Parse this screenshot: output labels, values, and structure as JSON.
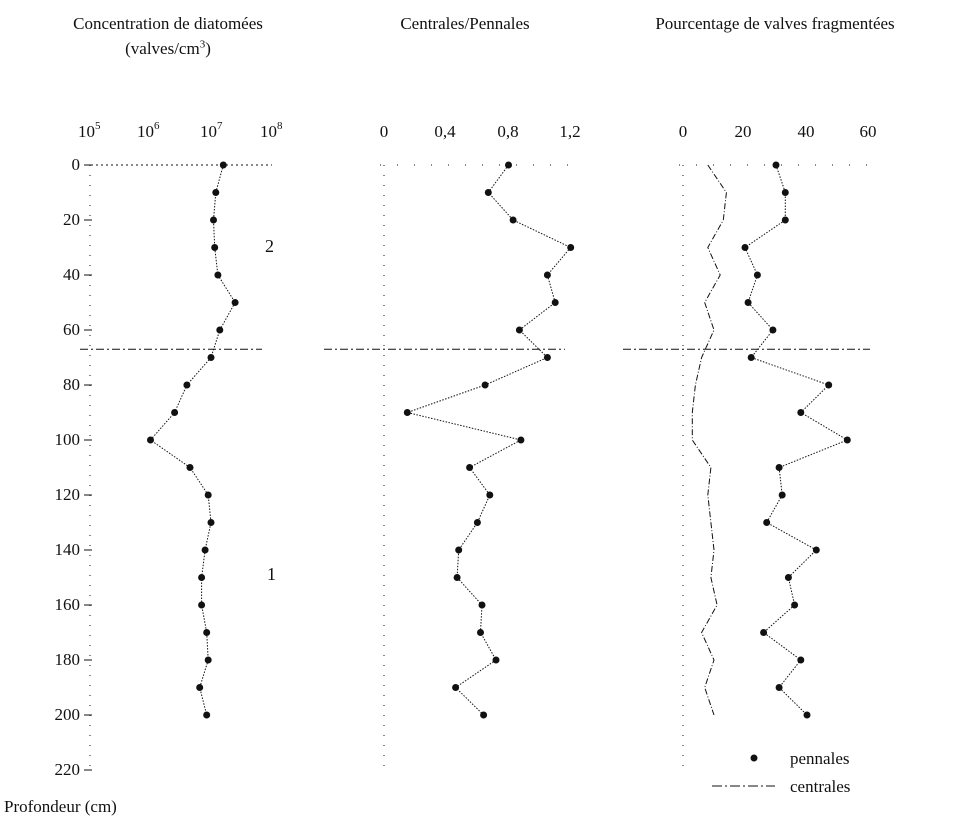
{
  "panel1": {
    "title_line1": "Concentration de diatomées",
    "title_line2": "(valves/cm",
    "title_line2_sup": "3",
    "title_line2_end": ")",
    "tick_base": "10",
    "tick_exps": [
      "5",
      "6",
      "7",
      "8"
    ],
    "zone_labels": [
      "2",
      "1"
    ]
  },
  "panel2": {
    "title": "Centrales/Pennales",
    "tick_labels": [
      "0",
      "0,4",
      "0,8",
      "1,2"
    ]
  },
  "panel3": {
    "title": "Pourcentage de valves fragmentées",
    "tick_labels": [
      "0",
      "20",
      "40",
      "60"
    ]
  },
  "depth_axis": {
    "tick_labels": [
      "0",
      "20",
      "40",
      "60",
      "80",
      "100",
      "120",
      "140",
      "160",
      "180",
      "200",
      "220"
    ],
    "title": "Profondeur (cm)"
  },
  "legend": {
    "items": [
      {
        "label": "pennales",
        "marker": "dot"
      },
      {
        "label": "centrales",
        "marker": "line"
      }
    ]
  },
  "colors": {
    "ink": "#111111",
    "background": "#ffffff"
  },
  "chart_data": [
    {
      "type": "line",
      "title": "Concentration de diatomées (valves/cm3)",
      "xscale": "log",
      "xlim": [
        100000,
        100000000
      ],
      "ylim": [
        0,
        220
      ],
      "y_inverted": true,
      "xlabel": "",
      "ylabel": "Profondeur (cm)",
      "zone_boundary_depth": 67,
      "series": [
        {
          "x": [
            16000000,
            12000000,
            11000000,
            11500000,
            13000000,
            25000000,
            14000000,
            10000000,
            4000000,
            2500000,
            1000000,
            4500000,
            9000000,
            10000000,
            8000000,
            7000000,
            7000000,
            8500000,
            9000000,
            6500000,
            8500000
          ],
          "y": [
            0,
            10,
            20,
            30,
            40,
            50,
            60,
            70,
            80,
            90,
            100,
            110,
            120,
            130,
            140,
            150,
            160,
            170,
            180,
            190,
            200
          ]
        }
      ]
    },
    {
      "type": "line",
      "title": "Centrales/Pennales",
      "xlim": [
        0,
        1.2
      ],
      "ylim": [
        0,
        220
      ],
      "y_inverted": true,
      "series": [
        {
          "x": [
            0.8,
            0.67,
            0.83,
            1.2,
            1.05,
            1.1,
            0.87,
            1.05,
            0.65,
            0.15,
            0.88,
            0.55,
            0.68,
            0.6,
            0.48,
            0.47,
            0.63,
            0.62,
            0.72,
            0.46,
            0.64
          ],
          "y": [
            0,
            10,
            20,
            30,
            40,
            50,
            60,
            70,
            80,
            90,
            100,
            110,
            120,
            130,
            140,
            150,
            160,
            170,
            180,
            190,
            200
          ]
        }
      ]
    },
    {
      "type": "line",
      "title": "Pourcentage de valves fragmentées",
      "xlim": [
        0,
        60
      ],
      "ylim": [
        0,
        220
      ],
      "y_inverted": true,
      "series": [
        {
          "name": "pennales",
          "x": [
            30,
            33,
            33,
            20,
            24,
            21,
            29,
            22,
            47,
            38,
            53,
            31,
            32,
            27,
            43,
            34,
            36,
            26,
            38,
            31,
            40
          ],
          "y": [
            0,
            10,
            20,
            30,
            40,
            50,
            60,
            70,
            80,
            90,
            100,
            110,
            120,
            130,
            140,
            150,
            160,
            170,
            180,
            190,
            200
          ]
        },
        {
          "name": "centrales",
          "x": [
            8,
            14,
            13,
            8,
            12,
            7,
            10,
            6,
            4,
            3,
            3,
            9,
            8,
            9,
            10,
            9,
            11,
            6,
            10,
            7,
            10
          ],
          "y": [
            0,
            10,
            20,
            30,
            40,
            50,
            60,
            70,
            80,
            90,
            100,
            110,
            120,
            130,
            140,
            150,
            160,
            170,
            180,
            190,
            200
          ]
        }
      ]
    }
  ]
}
